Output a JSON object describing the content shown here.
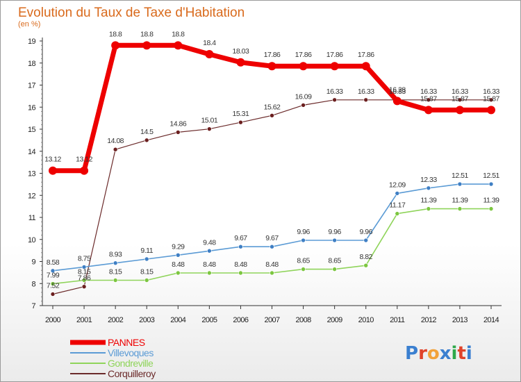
{
  "chart_data": {
    "type": "line",
    "title": "Evolution du Taux de Taxe d'Habitation",
    "subtitle": "(en %)",
    "x": [
      "2000",
      "2001",
      "2002",
      "2003",
      "2004",
      "2005",
      "2006",
      "2007",
      "2008",
      "2009",
      "2010",
      "2011",
      "2012",
      "2013",
      "2014"
    ],
    "ylim": [
      7,
      19
    ],
    "yticks": [
      7,
      8,
      9,
      10,
      11,
      12,
      13,
      14,
      15,
      16,
      17,
      18,
      19
    ],
    "grid": false,
    "legend_position": "bottom-left",
    "series": [
      {
        "name": "PANNES",
        "color": "#ee0000",
        "values": [
          13.12,
          13.12,
          18.8,
          18.8,
          18.8,
          18.4,
          18.03,
          17.86,
          17.86,
          17.86,
          17.86,
          16.28,
          15.87,
          15.87,
          15.87
        ],
        "labels": [
          "13.12",
          "13.12",
          "18.8",
          "18.8",
          "18.8",
          "18.4",
          "18.03",
          "17.86",
          "17.86",
          "17.86",
          "17.86",
          "16.28",
          "15.87",
          "15.87",
          "15.87"
        ]
      },
      {
        "name": "Villevoques",
        "color": "#5b9bd5",
        "values": [
          8.58,
          8.75,
          8.93,
          9.11,
          9.29,
          9.48,
          9.67,
          9.67,
          9.96,
          9.96,
          9.96,
          12.09,
          12.33,
          12.51,
          12.51
        ],
        "labels": [
          "8.58",
          "8.75",
          "8.93",
          "9.11",
          "9.29",
          "9.48",
          "9.67",
          "9.67",
          "9.96",
          "9.96",
          "9.96",
          "12.09",
          "12.33",
          "12.51",
          "12.51"
        ]
      },
      {
        "name": "Gondreville",
        "color": "#8fd45a",
        "values": [
          7.99,
          8.15,
          8.15,
          8.15,
          8.48,
          8.48,
          8.48,
          8.48,
          8.65,
          8.65,
          8.82,
          11.17,
          11.39,
          11.39,
          11.39
        ],
        "labels": [
          "7.99",
          "8.15",
          "8.15",
          "8.15",
          "8.48",
          "8.48",
          "8.48",
          "8.48",
          "8.65",
          "8.65",
          "8.82",
          "11.17",
          "11.39",
          "11.39",
          "11.39"
        ]
      },
      {
        "name": "Corquilleroy",
        "color": "#6b2a2a",
        "values": [
          7.52,
          7.86,
          14.08,
          14.5,
          14.86,
          15.01,
          15.31,
          15.62,
          16.09,
          16.33,
          16.33,
          16.33,
          16.33,
          16.33,
          16.33
        ],
        "labels": [
          "7.52",
          "7.86",
          "14.08",
          "14.5",
          "14.86",
          "15.01",
          "15.31",
          "15.62",
          "16.09",
          "16.33",
          "16.33",
          "16.33",
          "16.33",
          "16.33",
          "16.33"
        ]
      }
    ]
  },
  "branding": {
    "logo_text": "Proxiti"
  }
}
